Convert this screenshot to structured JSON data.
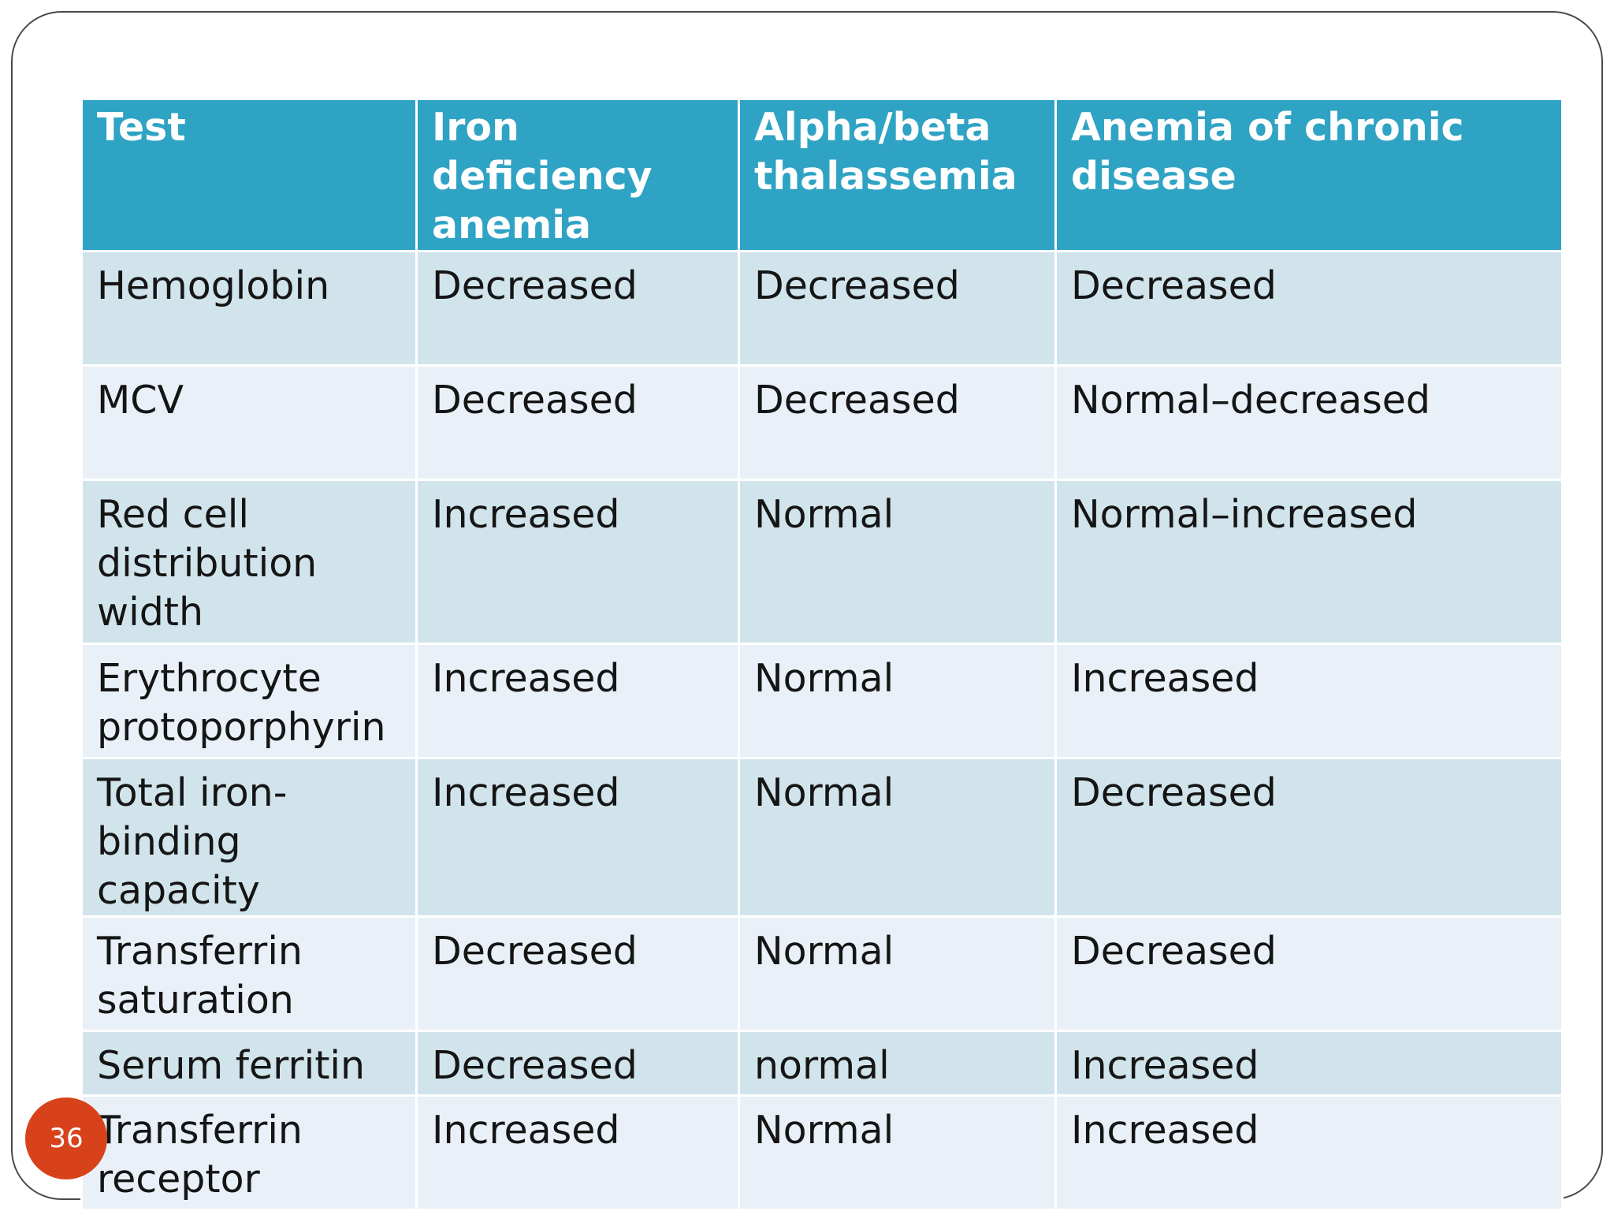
{
  "table": {
    "headers": [
      "Test",
      "Iron deficiency anemia",
      "Alpha/beta thalassemia",
      "Anemia of chronic disease"
    ],
    "rows": [
      [
        "Hemoglobin",
        "Decreased",
        "Decreased",
        "Decreased"
      ],
      [
        "MCV",
        "Decreased",
        "Decreased",
        "Normal–decreased"
      ],
      [
        "Red cell distribution width",
        "Increased",
        "Normal",
        "Normal–increased"
      ],
      [
        "Erythrocyte protoporphyrin",
        "Increased",
        "Normal",
        "Increased"
      ],
      [
        "Total iron-binding capacity",
        "Increased",
        "Normal",
        "Decreased"
      ],
      [
        "Transferrin saturation",
        "Decreased",
        "Normal",
        "Decreased"
      ],
      [
        "Serum ferritin",
        "Decreased",
        "normal",
        "Increased"
      ],
      [
        "Transferrin receptor",
        "Increased",
        "Normal",
        "Increased"
      ]
    ]
  },
  "page_number": "36",
  "colors": {
    "header_bg": "#2fa3c4",
    "row_dark": "#d1e4ec",
    "row_light": "#e9f0f7",
    "badge": "#d8421b"
  }
}
